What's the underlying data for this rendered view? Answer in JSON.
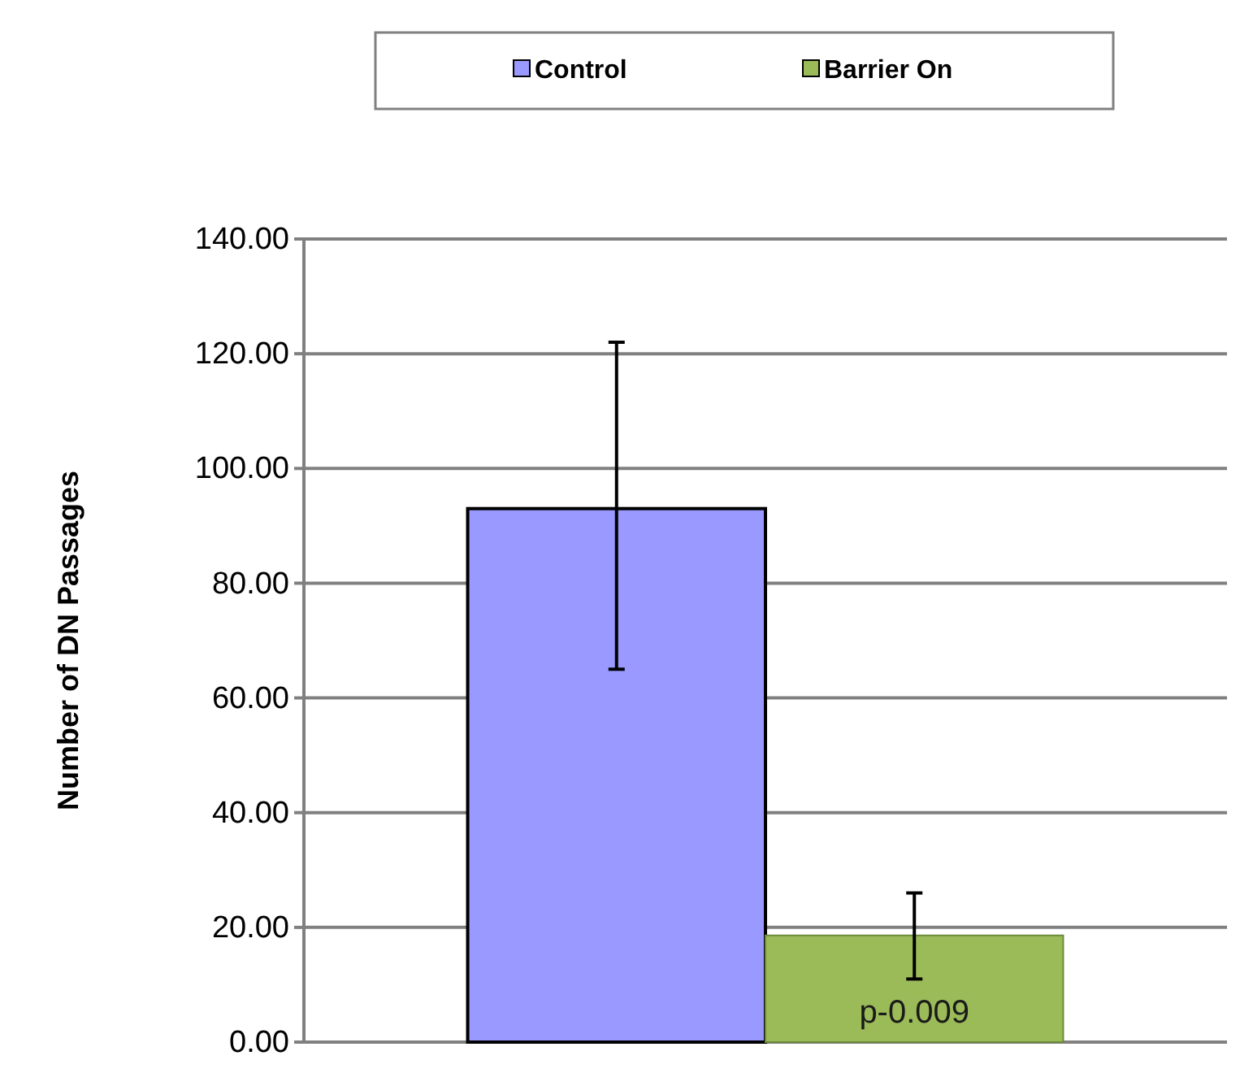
{
  "chart_data": {
    "type": "bar",
    "ylabel": "Number of DN Passages",
    "categories": [
      null
    ],
    "series": [
      {
        "name": "Control",
        "color": "#9999ff",
        "values": [
          93
        ],
        "errors": [
          [
            65,
            122
          ]
        ]
      },
      {
        "name": "Barrier On",
        "color": "#9bbb59",
        "values": [
          18.6
        ],
        "errors": [
          [
            11,
            26
          ]
        ]
      }
    ],
    "ylim": [
      0,
      140
    ],
    "yticks": [
      {
        "value": 0,
        "label": "0.00"
      },
      {
        "value": 20,
        "label": "20.00"
      },
      {
        "value": 40,
        "label": "40.00"
      },
      {
        "value": 60,
        "label": "60.00"
      },
      {
        "value": 80,
        "label": "80.00"
      },
      {
        "value": 100,
        "label": "100.00"
      },
      {
        "value": 120,
        "label": "120.00"
      },
      {
        "value": 140,
        "label": "140.00"
      }
    ],
    "grid": "y",
    "legend": "top",
    "annotations": [
      "p-0.009"
    ]
  }
}
